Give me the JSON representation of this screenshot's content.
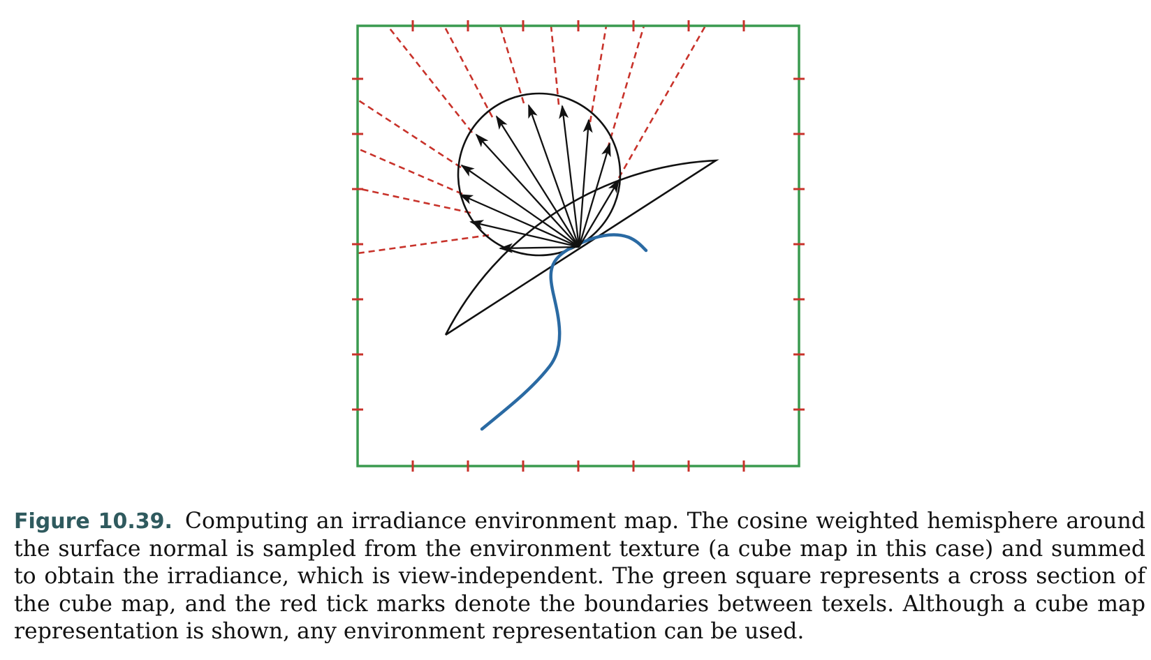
{
  "figure": {
    "number_label": "Figure 10.39.",
    "caption_lines": [
      "Computing an irradiance environment map. The cosine weighted hemisphere around",
      "the surface normal is sampled from the environment texture (a cube map in this case) and summed",
      "to obtain the irradiance, which is view-independent. The green square represents a cross section of",
      "the cube map, and the red tick marks denote the boundaries between texels. Although a cube map",
      "representation is shown, any environment representation can be used."
    ]
  },
  "colors": {
    "cube_map_border": "#3a9a4f",
    "texel_ticks": "#c8322a",
    "sample_rays": "#c8322a",
    "surface": "#2a6aa3",
    "outline": "#111111"
  }
}
